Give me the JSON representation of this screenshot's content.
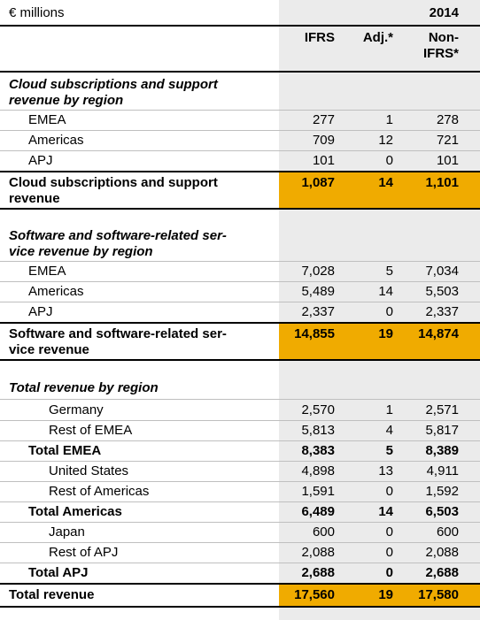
{
  "header": {
    "unit": "€ millions",
    "year": "2014",
    "col_ifrs": "IFRS",
    "col_adj": "Adj.*",
    "col_nonifrs_1": "Non-",
    "col_nonifrs_2": "IFRS*"
  },
  "cloud": {
    "heading_1": "Cloud subscriptions and support",
    "heading_2": "revenue by region",
    "rows": [
      {
        "label": "EMEA",
        "ifrs": "277",
        "adj": "1",
        "non": "278"
      },
      {
        "label": "Americas",
        "ifrs": "709",
        "adj": "12",
        "non": "721"
      },
      {
        "label": "APJ",
        "ifrs": "101",
        "adj": "0",
        "non": "101"
      }
    ],
    "total_1": "Cloud subscriptions and support",
    "total_2": "revenue",
    "total": {
      "ifrs": "1,087",
      "adj": "14",
      "non": "1,101"
    }
  },
  "software": {
    "heading_1": "Software and software-related ser-",
    "heading_2": "vice revenue by region",
    "rows": [
      {
        "label": "EMEA",
        "ifrs": "7,028",
        "adj": "5",
        "non": "7,034"
      },
      {
        "label": "Americas",
        "ifrs": "5,489",
        "adj": "14",
        "non": "5,503"
      },
      {
        "label": "APJ",
        "ifrs": "2,337",
        "adj": "0",
        "non": "2,337"
      }
    ],
    "total_1": "Software and software-related ser-",
    "total_2": "vice revenue",
    "total": {
      "ifrs": "14,855",
      "adj": "19",
      "non": "14,874"
    }
  },
  "region": {
    "heading": "Total revenue by region",
    "rows": [
      {
        "label": "Germany",
        "ifrs": "2,570",
        "adj": "1",
        "non": "2,571"
      },
      {
        "label": "Rest of EMEA",
        "ifrs": "5,813",
        "adj": "4",
        "non": "5,817"
      },
      {
        "label": "Total EMEA",
        "ifrs": "8,383",
        "adj": "5",
        "non": "8,389"
      },
      {
        "label": "United States",
        "ifrs": "4,898",
        "adj": "13",
        "non": "4,911"
      },
      {
        "label": "Rest of Americas",
        "ifrs": "1,591",
        "adj": "0",
        "non": "1,592"
      },
      {
        "label": "Total Americas",
        "ifrs": "6,489",
        "adj": "14",
        "non": "6,503"
      },
      {
        "label": "Japan",
        "ifrs": "600",
        "adj": "0",
        "non": "600"
      },
      {
        "label": "Rest of APJ",
        "ifrs": "2,088",
        "adj": "0",
        "non": "2,088"
      },
      {
        "label": "Total APJ",
        "ifrs": "2,688",
        "adj": "0",
        "non": "2,688"
      }
    ],
    "total_label": "Total revenue",
    "total": {
      "ifrs": "17,560",
      "adj": "19",
      "non": "17,580"
    }
  },
  "colors": {
    "highlight": "#f0ab00",
    "column_shade": "#ebebeb",
    "rule": "#bfbfbf"
  }
}
